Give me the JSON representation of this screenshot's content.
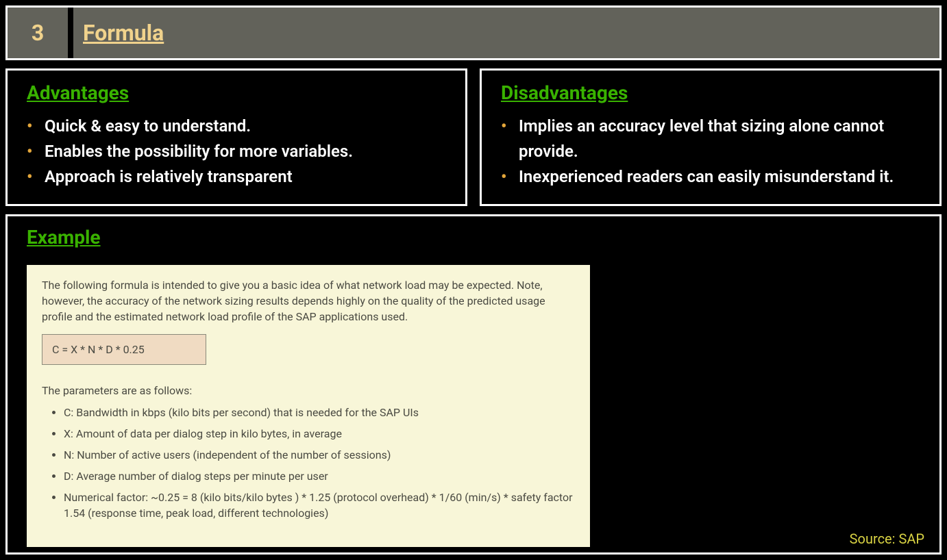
{
  "colors": {
    "page_bg": "#000000",
    "panel_border": "#ffffff",
    "header_bg": "#62625a",
    "header_text": "#f0d28c",
    "heading_green": "#39b200",
    "bullet_orange": "#e3a63a",
    "body_text": "#ffffff",
    "example_bg": "#f8f6d8",
    "example_text": "#4a4a42",
    "formula_bg": "#f0dbc2",
    "formula_border": "#8a8a7a",
    "source_text": "#d8d243"
  },
  "typography": {
    "header_fontsize": 32,
    "heading_fontsize": 28,
    "bullet_fontsize": 24,
    "example_fontsize": 16,
    "source_fontsize": 20
  },
  "header": {
    "number": "3",
    "title": "Formula"
  },
  "advantages": {
    "heading": "Advantages",
    "items": [
      "Quick & easy to understand.",
      "Enables the possibility for more variables.",
      "Approach is relatively transparent"
    ]
  },
  "disadvantages": {
    "heading": "Disadvantages",
    "items": [
      "Implies an accuracy level that sizing alone cannot provide.",
      "Inexperienced readers can easily misunderstand it."
    ]
  },
  "example": {
    "heading": "Example",
    "intro": "The following formula is intended to give you a basic idea of what network load may be expected. Note, however, the accuracy of the network sizing results depends highly on the quality of the predicted usage profile and the estimated network load profile of the SAP applications used.",
    "formula": "C = X * N * D * 0.25",
    "params_lead": "The parameters are as follows:",
    "params": [
      "C: Bandwidth in kbps (kilo bits per second)  that is needed for the SAP UIs",
      "X: Amount of data per dialog step in kilo bytes, in average",
      "N: Number of active users (independent of the number of sessions)",
      "D: Average number of dialog steps per minute per user",
      "Numerical factor: ~0.25 = 8 (kilo bits/kilo bytes ) * 1.25 (protocol overhead) * 1/60 (min/s) * safety factor 1.54 (response time, peak load, different technologies)"
    ],
    "source": "Source: SAP"
  }
}
